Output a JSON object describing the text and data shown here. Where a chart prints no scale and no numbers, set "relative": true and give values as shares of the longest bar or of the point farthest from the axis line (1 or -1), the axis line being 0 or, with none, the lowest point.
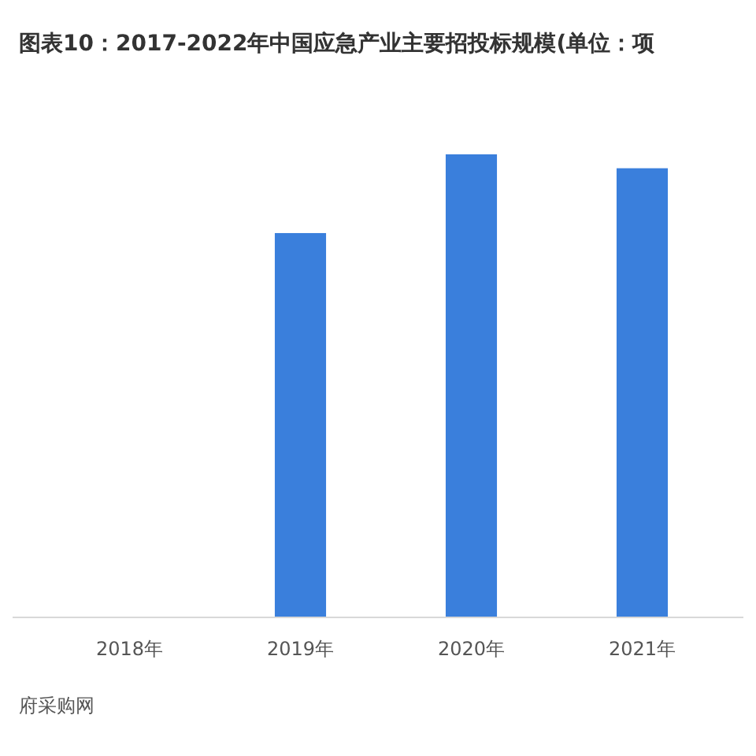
{
  "chart_data": {
    "type": "bar",
    "title": "图表10：2017-2022年中国应急产业主要招投标规模(单位：项",
    "categories": [
      "2018年",
      "2019年",
      "2020年",
      "2021年"
    ],
    "values": [
      null,
      0.83,
      1,
      0.97
    ],
    "color": "#3a7fdc",
    "relative": true,
    "annotations": [
      "府采购网"
    ]
  }
}
